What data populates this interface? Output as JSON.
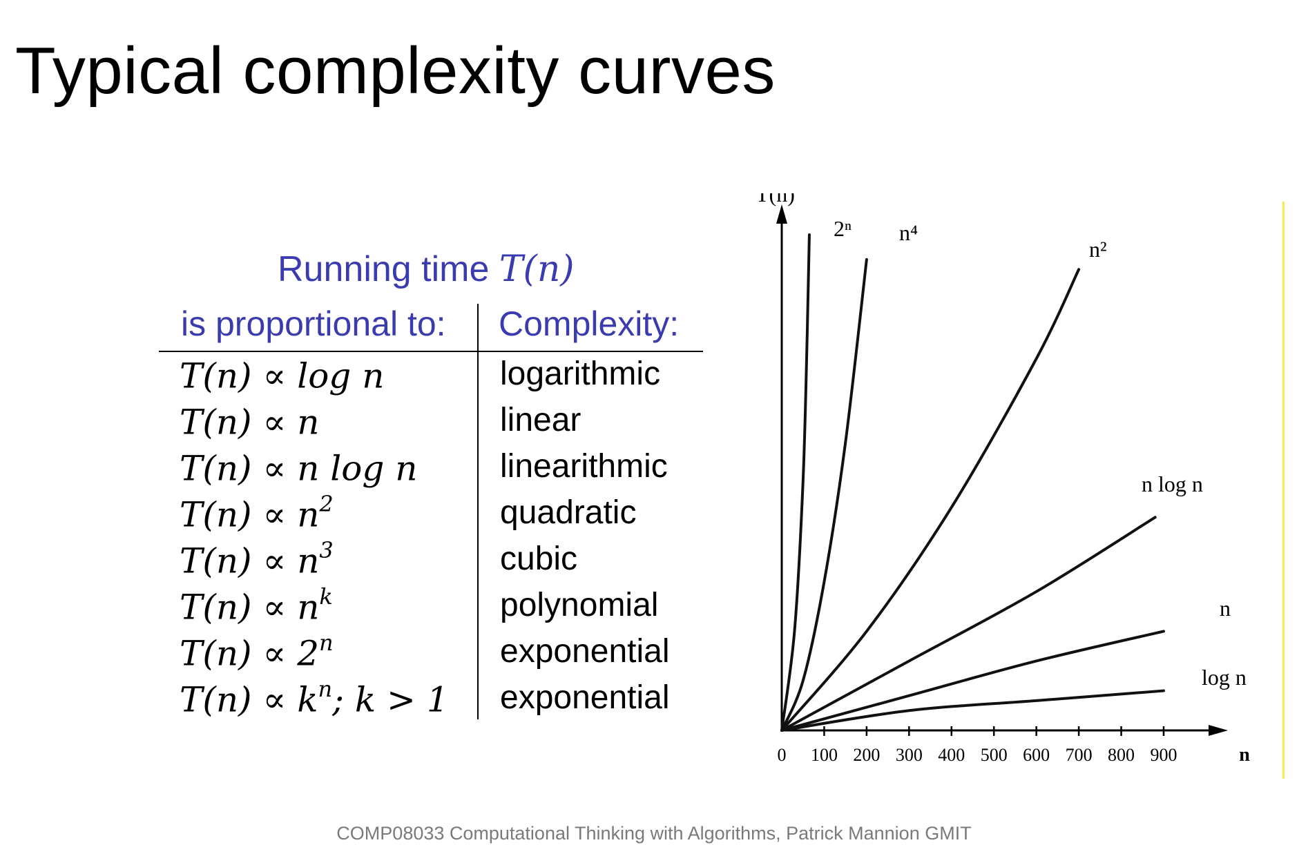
{
  "slide": {
    "title": "Typical complexity curves",
    "footer": "COMP08033 Computational Thinking with Algorithms, Patrick Mannion GMIT"
  },
  "table": {
    "caption_text": "Running time ",
    "caption_math": "T(n)",
    "col1_header": "is proportional to:",
    "col2_header": "Complexity:",
    "rows": [
      {
        "prefix": "T(n) ∝ ",
        "expr": "log n",
        "sup": "",
        "suffix": "",
        "complexity": "logarithmic"
      },
      {
        "prefix": "T(n) ∝ ",
        "expr": "n",
        "sup": "",
        "suffix": "",
        "complexity": "linear"
      },
      {
        "prefix": "T(n) ∝ ",
        "expr": "n log n",
        "sup": "",
        "suffix": "",
        "complexity": "linearithmic"
      },
      {
        "prefix": "T(n) ∝ ",
        "expr": "n",
        "sup": "2",
        "suffix": "",
        "complexity": "quadratic"
      },
      {
        "prefix": "T(n) ∝ ",
        "expr": "n",
        "sup": "3",
        "suffix": "",
        "complexity": "cubic"
      },
      {
        "prefix": "T(n) ∝ ",
        "expr": "n",
        "sup": "k",
        "suffix": "",
        "complexity": "polynomial"
      },
      {
        "prefix": "T(n) ∝ ",
        "expr": "2",
        "sup": "n",
        "suffix": "",
        "complexity": "exponential"
      },
      {
        "prefix": "T(n) ∝ ",
        "expr": "k",
        "sup": "n",
        "suffix": "; k > 1",
        "complexity": "exponential"
      }
    ]
  },
  "chart_data": {
    "type": "line",
    "title": "",
    "xlabel": "n",
    "ylabel": "T(n)",
    "x_ticks": [
      0,
      100,
      200,
      300,
      400,
      500,
      600,
      700,
      800,
      900
    ],
    "xlim": [
      0,
      950
    ],
    "ylim": [
      0,
      100
    ],
    "grid": false,
    "legend": "curve labels placed at line ends",
    "series": [
      {
        "name": "2ⁿ",
        "x": [
          0,
          30,
          50,
          60,
          65
        ],
        "y": [
          0,
          20,
          50,
          80,
          100
        ]
      },
      {
        "name": "n⁴",
        "x": [
          0,
          50,
          100,
          150,
          200
        ],
        "y": [
          0,
          10,
          30,
          58,
          95
        ]
      },
      {
        "name": "n²",
        "x": [
          0,
          200,
          400,
          600,
          700
        ],
        "y": [
          0,
          20,
          45,
          75,
          93
        ]
      },
      {
        "name": "n log n",
        "x": [
          0,
          300,
          600,
          880
        ],
        "y": [
          0,
          14,
          28,
          43
        ]
      },
      {
        "name": "n",
        "x": [
          0,
          300,
          600,
          900
        ],
        "y": [
          0,
          7,
          14,
          20
        ]
      },
      {
        "name": "log n",
        "x": [
          0,
          300,
          600,
          900
        ],
        "y": [
          0,
          4,
          6,
          8
        ]
      }
    ]
  }
}
